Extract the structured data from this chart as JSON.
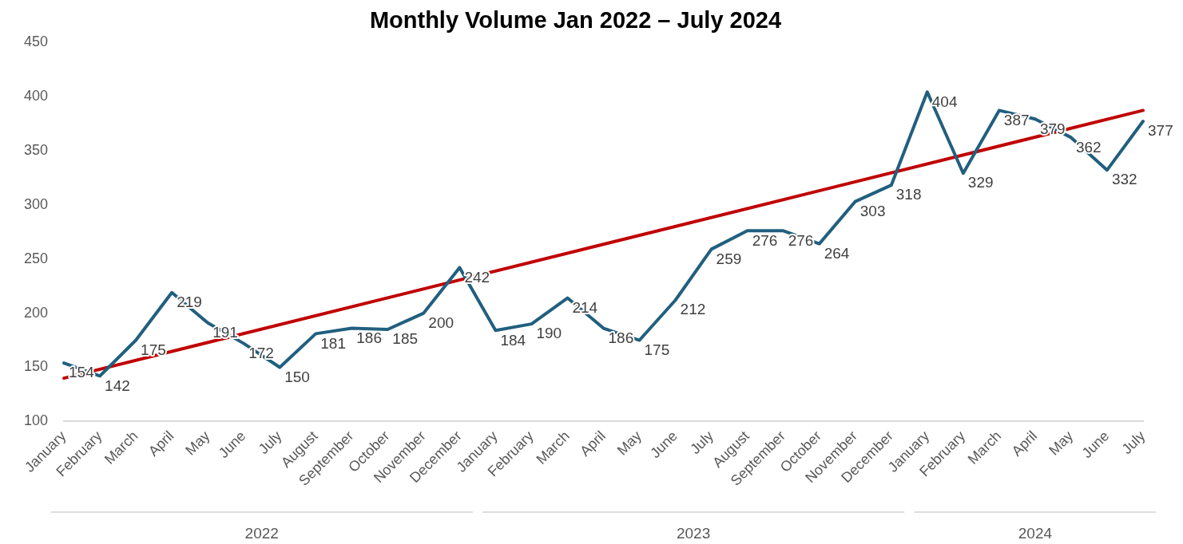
{
  "chart_data": {
    "type": "line",
    "title": "Monthly Volume Jan 2022 – July 2024",
    "categories": [
      "January",
      "February",
      "March",
      "April",
      "May",
      "June",
      "July",
      "August",
      "September",
      "October",
      "November",
      "December",
      "January",
      "February",
      "March",
      "April",
      "May",
      "June",
      "July",
      "August",
      "September",
      "October",
      "November",
      "December",
      "January",
      "February",
      "March",
      "April",
      "May",
      "June",
      "July"
    ],
    "series": [
      {
        "color": "#215f7f",
        "data_labels": true,
        "values": [
          154,
          142,
          175,
          219,
          191,
          172,
          150,
          181,
          186,
          185,
          200,
          242,
          184,
          190,
          214,
          186,
          175,
          212,
          259,
          276,
          276,
          264,
          303,
          318,
          404,
          329,
          387,
          379,
          362,
          332,
          377
        ]
      },
      {
        "color": "#c00000",
        "values": [
          140,
          null,
          null,
          null,
          null,
          null,
          null,
          null,
          null,
          null,
          null,
          null,
          null,
          null,
          null,
          null,
          null,
          null,
          null,
          null,
          null,
          null,
          null,
          null,
          null,
          null,
          null,
          null,
          null,
          null,
          387
        ]
      }
    ],
    "ylim": [
      100,
      450
    ],
    "yticks": [
      100,
      150,
      200,
      250,
      300,
      350,
      400,
      450
    ],
    "grid": false,
    "legend": false,
    "marker": "none",
    "line_style": "solid",
    "annotations": [
      "2022",
      "2023",
      "2024"
    ]
  }
}
